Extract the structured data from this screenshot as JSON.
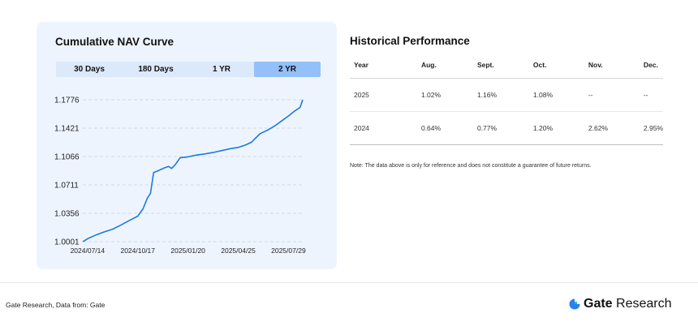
{
  "nav_card": {
    "title": "Cumulative NAV Curve",
    "tabs": [
      {
        "label": "30 Days",
        "active": false
      },
      {
        "label": "180 Days",
        "active": false
      },
      {
        "label": "1 YR",
        "active": false
      },
      {
        "label": "2 YR",
        "active": true
      }
    ]
  },
  "chart_data": {
    "type": "line",
    "title": "Cumulative NAV Curve",
    "xlabel": "",
    "ylabel": "",
    "y_ticks": [
      "1.1776",
      "1.1421",
      "1.1066",
      "1.0711",
      "1.0356",
      "1.0001"
    ],
    "x_ticks": [
      "2024/07/14",
      "2024/10/17",
      "2025/01/20",
      "2025/04/25",
      "2025/07/29"
    ],
    "ylim": [
      1.0001,
      1.1776
    ],
    "xlim": [
      "2024/07/05",
      "2025/08/25"
    ],
    "grid": "horizontal dashed",
    "color": "#1a7be0",
    "series": [
      {
        "values": [
          [
            "2024/07/05",
            1.0001
          ],
          [
            "2024/07/14",
            1.0038
          ],
          [
            "2024/07/30",
            1.0085
          ],
          [
            "2024/08/15",
            1.0124
          ],
          [
            "2024/08/31",
            1.0158
          ],
          [
            "2024/09/16",
            1.0212
          ],
          [
            "2024/10/01",
            1.0266
          ],
          [
            "2024/10/17",
            1.032
          ],
          [
            "2024/10/27",
            1.0413
          ],
          [
            "2024/11/04",
            1.0545
          ],
          [
            "2024/11/10",
            1.0606
          ],
          [
            "2024/11/16",
            1.0866
          ],
          [
            "2024/11/25",
            1.089
          ],
          [
            "2024/12/05",
            1.092
          ],
          [
            "2024/12/14",
            1.0942
          ],
          [
            "2024/12/20",
            1.0917
          ],
          [
            "2024/12/27",
            1.0965
          ],
          [
            "2025/01/05",
            1.105
          ],
          [
            "2025/01/20",
            1.1062
          ],
          [
            "2025/02/05",
            1.1084
          ],
          [
            "2025/02/20",
            1.1097
          ],
          [
            "2025/03/08",
            1.1116
          ],
          [
            "2025/03/25",
            1.114
          ],
          [
            "2025/04/10",
            1.1164
          ],
          [
            "2025/04/25",
            1.118
          ],
          [
            "2025/05/08",
            1.1208
          ],
          [
            "2025/05/20",
            1.1245
          ],
          [
            "2025/06/05",
            1.135
          ],
          [
            "2025/06/20",
            1.1398
          ],
          [
            "2025/07/05",
            1.1458
          ],
          [
            "2025/07/20",
            1.153
          ],
          [
            "2025/07/29",
            1.1573
          ],
          [
            "2025/08/10",
            1.1636
          ],
          [
            "2025/08/20",
            1.168
          ],
          [
            "2025/08/25",
            1.1776
          ]
        ]
      }
    ]
  },
  "performance": {
    "title": "Historical Performance",
    "columns": [
      "Year",
      "Aug.",
      "Sept.",
      "Oct.",
      "Nov.",
      "Dec."
    ],
    "rows": [
      {
        "year": "2025",
        "aug": "1.02%",
        "sep": "1.16%",
        "oct": "1.08%",
        "nov": "--",
        "dec": "--"
      },
      {
        "year": "2024",
        "aug": "0.64%",
        "sep": "0.77%",
        "oct": "1.20%",
        "nov": "2.62%",
        "dec": "2.95%"
      }
    ],
    "note": "Note: The data above is only for reference and does not constitute a guarantee of future returns."
  },
  "footer": {
    "source": "Gate Research, Data from:  Gate",
    "brand_bold": "Gate",
    "brand_rest": " Research",
    "brand_icon": "gate-logo-icon"
  },
  "colors": {
    "card_bg": "#eef4fd",
    "active_tab": "#93c0f8",
    "line": "#1a7be0",
    "positive": "#e02b2b"
  }
}
